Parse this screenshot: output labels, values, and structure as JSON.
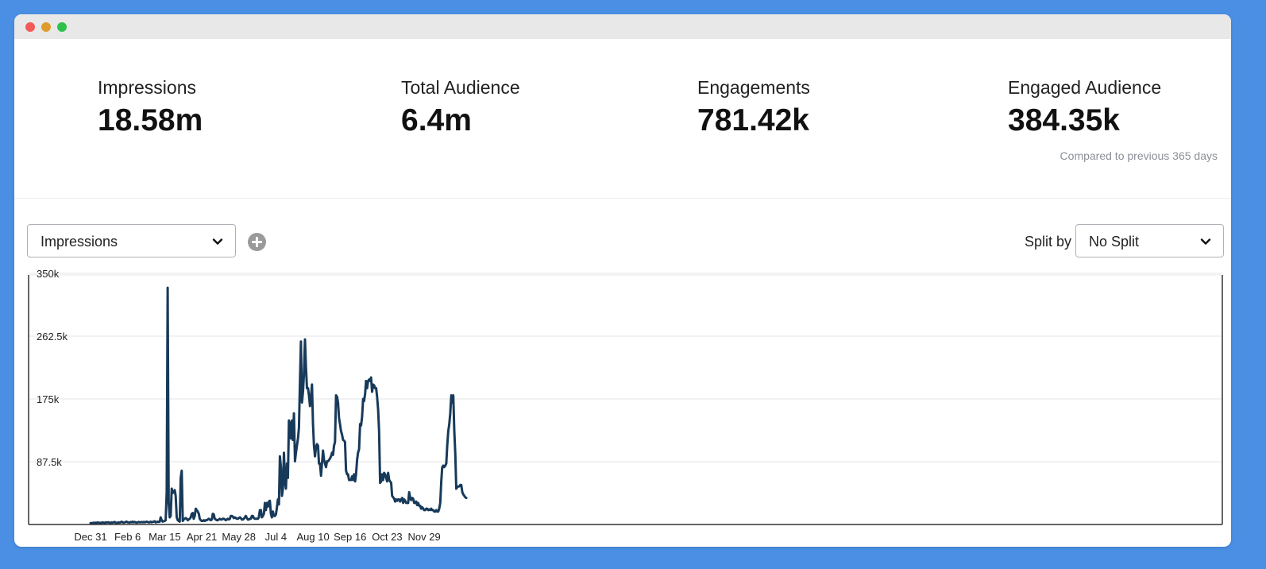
{
  "kpis": [
    {
      "label": "Impressions",
      "value": "18.58m"
    },
    {
      "label": "Total Audience",
      "value": "6.4m"
    },
    {
      "label": "Engagements",
      "value": "781.42k"
    },
    {
      "label": "Engaged Audience",
      "value": "384.35k"
    }
  ],
  "compare_note": "Compared to previous 365 days",
  "controls": {
    "metric_select": "Impressions",
    "split_label": "Split by",
    "split_select": "No Split"
  },
  "icons": {
    "add": "plus-circle-icon",
    "dropdown": "chevron-down-icon"
  },
  "colors": {
    "line": "#183a5a",
    "frame_background": "#4a8fe3"
  },
  "chart_data": {
    "type": "line",
    "title": "",
    "xlabel": "",
    "ylabel": "",
    "ylim": [
      0,
      350000
    ],
    "yticks": [
      "87.5k",
      "175k",
      "262.5k",
      "350k"
    ],
    "ytick_values": [
      87500,
      175000,
      262500,
      350000
    ],
    "xticks": [
      "Dec 31",
      "Feb 6",
      "Mar 15",
      "Apr 21",
      "May 28",
      "Jul 4",
      "Aug 10",
      "Sep 16",
      "Oct 23",
      "Nov 29"
    ],
    "xtick_index": [
      0,
      37,
      74,
      111,
      148,
      185,
      222,
      259,
      296,
      333
    ],
    "grid": true,
    "series": [
      {
        "values": [
          2000,
          2000,
          2000,
          2500,
          2000,
          2500,
          2000,
          3000,
          2500,
          2000,
          2500,
          2000,
          3000,
          2500,
          2000,
          3000,
          2500,
          3000,
          3000,
          2500,
          2000,
          3000,
          2500,
          3000,
          3500,
          2500,
          2000,
          2500,
          3000,
          2500,
          3000,
          4000,
          3000,
          2500,
          3000,
          3500,
          4000,
          3000,
          3000,
          2500,
          3500,
          3000,
          4000,
          3000,
          3500,
          3000,
          2500,
          3000,
          3500,
          3000,
          3000,
          3500,
          3000,
          3500,
          3000,
          3500,
          4000,
          3500,
          3000,
          3000,
          4000,
          3000,
          3500,
          4000,
          4500,
          3000,
          3500,
          4000,
          3500,
          4000,
          10000,
          6000,
          4000,
          4500,
          5000,
          6000,
          45000,
          330000,
          30000,
          10000,
          12000,
          50000,
          44000,
          45000,
          48000,
          40000,
          10000,
          6000,
          5000,
          4000,
          65000,
          75000,
          5000,
          7000,
          8000,
          9000,
          8000,
          6000,
          7000,
          8000,
          10000,
          15000,
          16000,
          8000,
          12000,
          22000,
          20000,
          18000,
          15000,
          8000,
          6000,
          5000,
          5000,
          6000,
          5000,
          6000,
          6000,
          7000,
          8000,
          7000,
          6000,
          7000,
          15000,
          14000,
          8000,
          7000,
          6000,
          6000,
          7000,
          8000,
          7000,
          7000,
          8000,
          8000,
          7000,
          6000,
          7000,
          8000,
          7000,
          8000,
          12000,
          12000,
          11000,
          9000,
          10000,
          9000,
          8000,
          8000,
          9000,
          10000,
          9000,
          7000,
          7000,
          8000,
          10000,
          12000,
          9000,
          7000,
          7000,
          8000,
          8000,
          12000,
          12000,
          9000,
          8000,
          8000,
          8000,
          8000,
          10000,
          20000,
          20000,
          10000,
          12000,
          15000,
          30000,
          20000,
          30000,
          25000,
          32000,
          33000,
          15000,
          10000,
          18000,
          12000,
          12000,
          14000,
          24000,
          35000,
          28000,
          95000,
          80000,
          40000,
          50000,
          100000,
          60000,
          50000,
          85000,
          65000,
          145000,
          140000,
          120000,
          145000,
          118000,
          155000,
          88000,
          100000,
          110000,
          120000,
          135000,
          200000,
          255000,
          170000,
          185000,
          210000,
          258000,
          220000,
          190000,
          190000,
          180000,
          165000,
          178000,
          195000,
          140000,
          110000,
          95000,
          108000,
          112000,
          110000,
          85000,
          85000,
          68000,
          85000,
          103000,
          90000,
          85000,
          80000,
          88000,
          88000,
          90000,
          92000,
          95000,
          100000,
          97000,
          110000,
          115000,
          180000,
          178000,
          170000,
          148000,
          140000,
          130000,
          125000,
          118000,
          117000,
          115000,
          75000,
          70000,
          70000,
          62000,
          62000,
          62000,
          67000,
          62000,
          70000,
          60000,
          70000,
          90000,
          100000,
          105000,
          140000,
          138000,
          150000,
          175000,
          172000,
          182000,
          200000,
          190000,
          200000,
          202000,
          200000,
          205000,
          185000,
          195000,
          194000,
          190000,
          190000,
          178000,
          160000,
          130000,
          58000,
          60000,
          70000,
          62000,
          72000,
          70000,
          65000,
          60000,
          72000,
          62000,
          60000,
          58000,
          40000,
          38000,
          36000,
          32000,
          35000,
          33000,
          35000,
          35000,
          32000,
          35000,
          37000,
          30000,
          35000,
          33000,
          30000,
          30000,
          30000,
          45000,
          37000,
          34000,
          37000,
          36000,
          30000,
          30000,
          32000,
          27000,
          30000,
          26000,
          26000,
          22000,
          24000,
          22000,
          20000,
          20000,
          22000,
          22000,
          20000,
          21000,
          20000,
          22000,
          20000,
          20000,
          18000,
          18000,
          20000,
          18000,
          18000,
          22000,
          30000,
          60000,
          80000,
          82000,
          80000,
          82000,
          85000,
          110000,
          130000,
          140000,
          155000,
          180000,
          170000,
          180000,
          130000,
          100000,
          50000,
          52000,
          53000,
          53000,
          55000,
          55000,
          45000,
          42000,
          40000,
          38000,
          37000
        ]
      }
    ]
  }
}
